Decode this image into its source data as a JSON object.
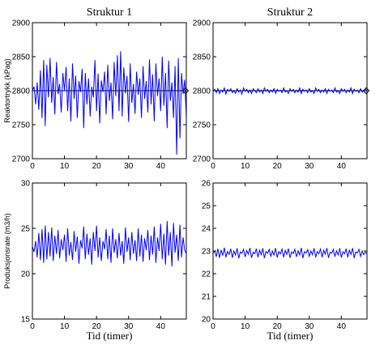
{
  "chart_data": [
    {
      "type": "line",
      "title": "Struktur 1",
      "xlabel": "",
      "ylabel": "Reaktortrykk (kPag)",
      "xlim": [
        0,
        48
      ],
      "ylim": [
        2700,
        2900
      ],
      "xticks": [
        "0",
        "10",
        "20",
        "30",
        "40"
      ],
      "yticks": [
        "2700",
        "2750",
        "2800",
        "2850",
        "2900"
      ],
      "grid": false,
      "setpoint": 2800,
      "series": [
        {
          "x": [
            0,
            0.5,
            1,
            1.5,
            2,
            2.5,
            3,
            3.5,
            4,
            4.5,
            5,
            5.5,
            6,
            6.5,
            7,
            7.5,
            8,
            8.5,
            9,
            9.5,
            10,
            10.5,
            11,
            11.5,
            12,
            12.5,
            13,
            13.5,
            14,
            14.5,
            15,
            15.5,
            16,
            16.5,
            17,
            17.5,
            18,
            18.5,
            19,
            19.5,
            20,
            20.5,
            21,
            21.5,
            22,
            22.5,
            23,
            23.5,
            24,
            24.5,
            25,
            25.5,
            26,
            26.5,
            27,
            27.5,
            28,
            28.5,
            29,
            29.5,
            30,
            30.5,
            31,
            31.5,
            32,
            32.5,
            33,
            33.5,
            34,
            34.5,
            35,
            35.5,
            36,
            36.5,
            37,
            37.5,
            38,
            38.5,
            39,
            39.5,
            40,
            40.5,
            41,
            41.5,
            42,
            42.5,
            43,
            43.5,
            44,
            44.5,
            45,
            45.5,
            46,
            46.5,
            47,
            47.5,
            48
          ],
          "y": [
            2800,
            2806,
            2780,
            2812,
            2772,
            2830,
            2760,
            2845,
            2748,
            2838,
            2790,
            2848,
            2782,
            2820,
            2765,
            2842,
            2795,
            2810,
            2768,
            2826,
            2800,
            2835,
            2770,
            2818,
            2755,
            2840,
            2788,
            2822,
            2760,
            2814,
            2798,
            2832,
            2745,
            2826,
            2780,
            2818,
            2762,
            2806,
            2790,
            2845,
            2770,
            2825,
            2752,
            2815,
            2798,
            2828,
            2765,
            2838,
            2785,
            2812,
            2758,
            2842,
            2792,
            2852,
            2770,
            2858,
            2762,
            2834,
            2796,
            2822,
            2754,
            2840,
            2782,
            2810,
            2766,
            2828,
            2794,
            2818,
            2760,
            2836,
            2788,
            2814,
            2768,
            2846,
            2780,
            2824,
            2755,
            2840,
            2792,
            2818,
            2770,
            2850,
            2778,
            2826,
            2745,
            2844,
            2785,
            2812,
            2760,
            2836,
            2706,
            2848,
            2730,
            2826,
            2795,
            2816,
            2760
          ]
        }
      ]
    },
    {
      "type": "line",
      "title": "Struktur 2",
      "xlabel": "",
      "ylabel": "",
      "xlim": [
        0,
        48
      ],
      "ylim": [
        2700,
        2900
      ],
      "xticks": [
        "0",
        "10",
        "20",
        "30",
        "40"
      ],
      "yticks": [
        "2700",
        "2750",
        "2800",
        "2850",
        "2900"
      ],
      "grid": false,
      "setpoint": 2800,
      "series": [
        {
          "x": [
            0,
            0.5,
            1,
            1.5,
            2,
            2.5,
            3,
            3.5,
            4,
            4.5,
            5,
            5.5,
            6,
            6.5,
            7,
            7.5,
            8,
            8.5,
            9,
            9.5,
            10,
            10.5,
            11,
            11.5,
            12,
            12.5,
            13,
            13.5,
            14,
            14.5,
            15,
            15.5,
            16,
            16.5,
            17,
            17.5,
            18,
            18.5,
            19,
            19.5,
            20,
            20.5,
            21,
            21.5,
            22,
            22.5,
            23,
            23.5,
            24,
            24.5,
            25,
            25.5,
            26,
            26.5,
            27,
            27.5,
            28,
            28.5,
            29,
            29.5,
            30,
            30.5,
            31,
            31.5,
            32,
            32.5,
            33,
            33.5,
            34,
            34.5,
            35,
            35.5,
            36,
            36.5,
            37,
            37.5,
            38,
            38.5,
            39,
            39.5,
            40,
            40.5,
            41,
            41.5,
            42,
            42.5,
            43,
            43.5,
            44,
            44.5,
            45,
            45.5,
            46,
            46.5,
            47,
            47.5,
            48
          ],
          "y": [
            2800,
            2802,
            2797,
            2803,
            2796,
            2801,
            2798,
            2804,
            2795,
            2802,
            2799,
            2803,
            2797,
            2800,
            2796,
            2803,
            2798,
            2801,
            2795,
            2804,
            2799,
            2802,
            2797,
            2801,
            2796,
            2803,
            2800,
            2797,
            2803,
            2798,
            2801,
            2796,
            2804,
            2799,
            2802,
            2797,
            2801,
            2798,
            2803,
            2796,
            2802,
            2799,
            2801,
            2797,
            2804,
            2798,
            2800,
            2796,
            2803,
            2799,
            2802,
            2797,
            2801,
            2798,
            2804,
            2796,
            2802,
            2799,
            2801,
            2797,
            2803,
            2798,
            2800,
            2796,
            2804,
            2799,
            2802,
            2797,
            2801,
            2798,
            2803,
            2796,
            2802,
            2799,
            2801,
            2797,
            2804,
            2798,
            2800,
            2796,
            2803,
            2799,
            2802,
            2797,
            2801,
            2798,
            2804,
            2796,
            2802,
            2799,
            2801,
            2797,
            2803,
            2798,
            2800,
            2802,
            2799
          ]
        }
      ]
    },
    {
      "type": "line",
      "title": "",
      "xlabel": "Tid (timer)",
      "ylabel": "Produksjonsrate (m3/h)",
      "xlim": [
        0,
        48
      ],
      "ylim": [
        15,
        30
      ],
      "xticks": [
        "0",
        "10",
        "20",
        "30",
        "40"
      ],
      "yticks": [
        "15",
        "20",
        "25",
        "30"
      ],
      "grid": false,
      "series": [
        {
          "x": [
            0,
            0.5,
            1,
            1.5,
            2,
            2.5,
            3,
            3.5,
            4,
            4.5,
            5,
            5.5,
            6,
            6.5,
            7,
            7.5,
            8,
            8.5,
            9,
            9.5,
            10,
            10.5,
            11,
            11.5,
            12,
            12.5,
            13,
            13.5,
            14,
            14.5,
            15,
            15.5,
            16,
            16.5,
            17,
            17.5,
            18,
            18.5,
            19,
            19.5,
            20,
            20.5,
            21,
            21.5,
            22,
            22.5,
            23,
            23.5,
            24,
            24.5,
            25,
            25.5,
            26,
            26.5,
            27,
            27.5,
            28,
            28.5,
            29,
            29.5,
            30,
            30.5,
            31,
            31.5,
            32,
            32.5,
            33,
            33.5,
            34,
            34.5,
            35,
            35.5,
            36,
            36.5,
            37,
            37.5,
            38,
            38.5,
            39,
            39.5,
            40,
            40.5,
            41,
            41.5,
            42,
            42.5,
            43,
            43.5,
            44,
            44.5,
            45,
            45.5,
            46,
            46.5,
            47,
            47.5,
            48
          ],
          "y": [
            23.0,
            22.4,
            23.6,
            21.8,
            24.5,
            21.5,
            24.9,
            21.2,
            25.3,
            21.6,
            24.6,
            21.9,
            25.1,
            21.4,
            24.2,
            22.2,
            24.8,
            21.7,
            23.8,
            22.6,
            24.3,
            21.3,
            25.0,
            22.0,
            23.5,
            21.5,
            24.7,
            22.4,
            24.1,
            21.1,
            23.7,
            22.8,
            25.2,
            21.6,
            24.4,
            22.1,
            23.9,
            21.0,
            24.6,
            22.5,
            25.3,
            21.8,
            24.0,
            21.4,
            23.6,
            22.7,
            24.9,
            21.6,
            24.2,
            21.2,
            25.0,
            22.3,
            23.8,
            21.7,
            24.5,
            22.0,
            23.6,
            21.1,
            25.1,
            22.4,
            24.0,
            21.5,
            24.6,
            22.2,
            23.7,
            21.4,
            25.0,
            21.9,
            24.3,
            21.3,
            23.9,
            22.6,
            24.8,
            21.5,
            24.2,
            22.1,
            25.2,
            21.2,
            24.0,
            22.5,
            25.5,
            21.6,
            24.4,
            21.0,
            25.8,
            22.0,
            24.6,
            20.8,
            25.6,
            22.3,
            24.3,
            21.4,
            25.4,
            21.8,
            24.0,
            22.6,
            22.2
          ]
        }
      ]
    },
    {
      "type": "line",
      "title": "",
      "xlabel": "Tid (timer)",
      "ylabel": "",
      "xlim": [
        0,
        48
      ],
      "ylim": [
        20,
        26
      ],
      "xticks": [
        "0",
        "10",
        "20",
        "30",
        "40"
      ],
      "yticks": [
        "20",
        "21",
        "22",
        "23",
        "24",
        "25",
        "26"
      ],
      "grid": false,
      "series": [
        {
          "x": [
            0,
            0.5,
            1,
            1.5,
            2,
            2.5,
            3,
            3.5,
            4,
            4.5,
            5,
            5.5,
            6,
            6.5,
            7,
            7.5,
            8,
            8.5,
            9,
            9.5,
            10,
            10.5,
            11,
            11.5,
            12,
            12.5,
            13,
            13.5,
            14,
            14.5,
            15,
            15.5,
            16,
            16.5,
            17,
            17.5,
            18,
            18.5,
            19,
            19.5,
            20,
            20.5,
            21,
            21.5,
            22,
            22.5,
            23,
            23.5,
            24,
            24.5,
            25,
            25.5,
            26,
            26.5,
            27,
            27.5,
            28,
            28.5,
            29,
            29.5,
            30,
            30.5,
            31,
            31.5,
            32,
            32.5,
            33,
            33.5,
            34,
            34.5,
            35,
            35.5,
            36,
            36.5,
            37,
            37.5,
            38,
            38.5,
            39,
            39.5,
            40,
            40.5,
            41,
            41.5,
            42,
            42.5,
            43,
            43.5,
            44,
            44.5,
            45,
            45.5,
            46,
            46.5,
            47,
            47.5,
            48
          ],
          "y": [
            22.9,
            23.0,
            22.75,
            23.1,
            22.7,
            23.05,
            22.8,
            23.15,
            22.72,
            22.98,
            22.85,
            23.1,
            22.7,
            23.0,
            22.82,
            23.12,
            22.68,
            22.96,
            22.9,
            23.08,
            22.74,
            23.02,
            22.86,
            23.14,
            22.7,
            22.95,
            22.88,
            23.1,
            22.73,
            23.04,
            22.84,
            23.12,
            22.69,
            22.98,
            22.9,
            23.07,
            22.75,
            23.0,
            22.82,
            23.13,
            22.71,
            22.97,
            22.87,
            23.09,
            22.72,
            23.03,
            22.85,
            23.11,
            22.7,
            22.96,
            22.89,
            23.08,
            22.74,
            23.01,
            22.83,
            23.14,
            22.69,
            22.97,
            22.91,
            23.06,
            22.76,
            23.0,
            22.84,
            23.12,
            22.72,
            22.98,
            22.88,
            23.09,
            22.73,
            23.03,
            22.86,
            23.13,
            22.7,
            22.95,
            22.9,
            23.07,
            22.75,
            23.01,
            22.83,
            23.12,
            22.71,
            22.97,
            22.88,
            23.1,
            22.72,
            23.04,
            22.85,
            23.13,
            22.69,
            22.96,
            22.91,
            23.07,
            22.76,
            23.0,
            22.84,
            22.95,
            22.88
          ]
        }
      ]
    }
  ],
  "colors": {
    "line": "#0000ff",
    "setpoint": "#000000",
    "axes": "#000000",
    "background": "#ffffff"
  },
  "setpoint_marker": "diamond"
}
